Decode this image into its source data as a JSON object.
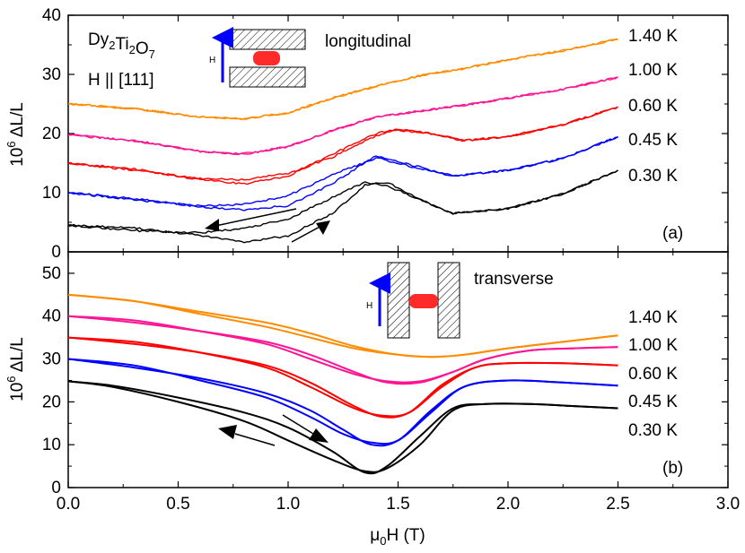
{
  "chart_data": [
    {
      "type": "line",
      "panel": "(a)",
      "xlabel": "μ0H (T)",
      "ylabel": "10^6 ΔL/L",
      "xlim": [
        0.0,
        3.0
      ],
      "ylim": [
        0,
        40
      ],
      "yticks": [
        "0",
        "10",
        "20",
        "30",
        "40"
      ],
      "legend_position": "right, beside curves",
      "annotations": [
        "Dy2Ti2O7",
        "H || [111]",
        "longitudinal",
        "(a)",
        "H"
      ],
      "series": [
        {
          "name": "0.30 K",
          "color": "#000000",
          "up": {
            "x": [
              0.0,
              0.3,
              0.6,
              0.8,
              1.0,
              1.2,
              1.35,
              1.45,
              1.6,
              1.75,
              2.0,
              2.25,
              2.5
            ],
            "y": [
              4.5,
              4.0,
              2.8,
              1.7,
              2.7,
              6.5,
              11.3,
              11.8,
              8.8,
              6.5,
              7.3,
              9.8,
              13.8
            ]
          },
          "down": {
            "x": [
              2.5,
              2.25,
              2.0,
              1.75,
              1.6,
              1.45,
              1.35,
              1.2,
              1.0,
              0.8,
              0.6,
              0.3,
              0.0
            ],
            "y": [
              13.8,
              9.8,
              7.3,
              6.5,
              8.8,
              11.2,
              11.8,
              9.2,
              5.5,
              4.0,
              3.2,
              3.6,
              4.5
            ]
          }
        },
        {
          "name": "0.45 K",
          "color": "#0000ff",
          "up": {
            "x": [
              0.0,
              0.3,
              0.6,
              0.8,
              1.0,
              1.2,
              1.4,
              1.55,
              1.75,
              2.0,
              2.25,
              2.5
            ],
            "y": [
              10.0,
              9.0,
              7.6,
              7.1,
              7.8,
              11.5,
              16.3,
              14.8,
              12.8,
              13.8,
              15.8,
              19.5
            ]
          },
          "down": {
            "x": [
              2.5,
              2.25,
              2.0,
              1.75,
              1.55,
              1.4,
              1.2,
              1.0,
              0.8,
              0.6,
              0.3,
              0.0
            ],
            "y": [
              19.5,
              15.8,
              13.8,
              12.8,
              14.5,
              15.9,
              13.0,
              9.5,
              8.0,
              7.8,
              8.8,
              10.0
            ]
          }
        },
        {
          "name": "0.60 K",
          "color": "#ff0000",
          "up": {
            "x": [
              0.0,
              0.3,
              0.6,
              0.8,
              1.0,
              1.2,
              1.4,
              1.5,
              1.65,
              1.8,
              2.0,
              2.25,
              2.5
            ],
            "y": [
              15.0,
              14.0,
              12.2,
              11.5,
              12.8,
              16.5,
              20.0,
              20.8,
              20.0,
              18.8,
              19.5,
              21.5,
              24.5
            ]
          },
          "down": {
            "x": [
              2.5,
              2.25,
              2.0,
              1.8,
              1.65,
              1.5,
              1.4,
              1.2,
              1.0,
              0.8,
              0.6,
              0.3,
              0.0
            ],
            "y": [
              24.5,
              21.5,
              19.5,
              18.8,
              20.0,
              20.6,
              19.6,
              16.0,
              13.3,
              12.2,
              12.4,
              13.8,
              15.0
            ]
          }
        },
        {
          "name": "1.00 K",
          "color": "#ff1493",
          "up": {
            "x": [
              0.0,
              0.3,
              0.6,
              0.8,
              1.0,
              1.2,
              1.4,
              1.6,
              1.8,
              2.0,
              2.25,
              2.5
            ],
            "y": [
              19.8,
              18.8,
              17.0,
              16.5,
              17.8,
              20.5,
              22.8,
              23.8,
              24.8,
              26.0,
              27.5,
              29.5
            ]
          },
          "down": {
            "x": [
              2.5,
              2.25,
              2.0,
              1.8,
              1.6,
              1.4,
              1.2,
              1.0,
              0.8,
              0.6,
              0.3,
              0.0
            ],
            "y": [
              29.5,
              27.5,
              26.0,
              24.8,
              23.8,
              22.8,
              20.5,
              17.8,
              16.6,
              17.0,
              18.8,
              19.8
            ]
          }
        },
        {
          "name": "1.40 K",
          "color": "#ff8c00",
          "up": {
            "x": [
              0.0,
              0.3,
              0.6,
              0.8,
              1.0,
              1.2,
              1.4,
              1.6,
              1.8,
              2.0,
              2.25,
              2.5
            ],
            "y": [
              25.0,
              24.2,
              22.8,
              22.5,
              23.5,
              26.0,
              28.0,
              29.8,
              31.0,
              32.5,
              34.0,
              36.0
            ]
          },
          "down": {
            "x": [
              2.5,
              2.25,
              2.0,
              1.8,
              1.6,
              1.4,
              1.2,
              1.0,
              0.8,
              0.6,
              0.3,
              0.0
            ],
            "y": [
              36.0,
              34.0,
              32.5,
              31.0,
              29.8,
              28.0,
              26.0,
              23.5,
              22.5,
              22.8,
              24.2,
              25.0
            ]
          }
        }
      ]
    },
    {
      "type": "line",
      "panel": "(b)",
      "xlabel": "μ0H (T)",
      "ylabel": "10^6 ΔL/L",
      "xlim": [
        0.0,
        3.0
      ],
      "ylim": [
        0,
        55
      ],
      "xticks": [
        "0.0",
        "0.5",
        "1.0",
        "1.5",
        "2.0",
        "2.5",
        "3.0"
      ],
      "yticks": [
        "0",
        "10",
        "20",
        "30",
        "40",
        "50"
      ],
      "legend_position": "right, beside curves",
      "annotations": [
        "transverse",
        "(b)",
        "H"
      ],
      "series": [
        {
          "name": "0.30 K",
          "color": "#000000",
          "up": {
            "x": [
              0.0,
              0.2,
              0.5,
              0.8,
              1.0,
              1.2,
              1.35,
              1.45,
              1.6,
              1.75,
              1.9,
              2.1,
              2.3,
              2.5
            ],
            "y": [
              24.8,
              23.8,
              21.0,
              17.5,
              14.0,
              8.5,
              3.5,
              5.0,
              12.0,
              18.5,
              19.5,
              19.5,
              19.0,
              18.5
            ]
          },
          "down": {
            "x": [
              2.5,
              2.3,
              2.1,
              1.9,
              1.75,
              1.6,
              1.45,
              1.35,
              1.2,
              1.0,
              0.8,
              0.5,
              0.2,
              0.0
            ],
            "y": [
              18.5,
              19.0,
              19.5,
              19.5,
              18.0,
              10.0,
              4.5,
              3.8,
              6.5,
              11.0,
              15.5,
              20.0,
              23.5,
              24.8
            ]
          }
        },
        {
          "name": "0.45 K",
          "color": "#0000ff",
          "up": {
            "x": [
              0.0,
              0.3,
              0.6,
              0.9,
              1.1,
              1.25,
              1.38,
              1.5,
              1.65,
              1.8,
              2.0,
              2.25,
              2.5
            ],
            "y": [
              30.0,
              28.0,
              25.5,
              22.0,
              18.0,
              13.5,
              10.0,
              11.0,
              18.0,
              23.5,
              25.0,
              24.5,
              23.8
            ]
          },
          "down": {
            "x": [
              2.5,
              2.25,
              2.0,
              1.8,
              1.65,
              1.5,
              1.38,
              1.25,
              1.1,
              0.9,
              0.6,
              0.3,
              0.0
            ],
            "y": [
              23.8,
              24.5,
              25.0,
              23.5,
              17.5,
              11.0,
              10.5,
              12.5,
              16.5,
              21.0,
              25.0,
              28.5,
              30.0
            ]
          }
        },
        {
          "name": "0.60 K",
          "color": "#ff0000",
          "up": {
            "x": [
              0.0,
              0.3,
              0.6,
              0.9,
              1.1,
              1.3,
              1.43,
              1.55,
              1.7,
              1.85,
              2.0,
              2.25,
              2.5
            ],
            "y": [
              35.0,
              33.5,
              31.5,
              28.5,
              24.5,
              19.0,
              16.5,
              17.5,
              24.0,
              28.0,
              29.0,
              29.0,
              28.5
            ]
          },
          "down": {
            "x": [
              2.5,
              2.25,
              2.0,
              1.85,
              1.7,
              1.55,
              1.43,
              1.3,
              1.1,
              0.9,
              0.6,
              0.3,
              0.0
            ],
            "y": [
              28.5,
              29.0,
              29.0,
              28.0,
              23.5,
              17.5,
              16.8,
              18.5,
              23.5,
              28.0,
              31.5,
              34.0,
              35.0
            ]
          }
        },
        {
          "name": "1.00 K",
          "color": "#ff1493",
          "up": {
            "x": [
              0.0,
              0.3,
              0.6,
              0.9,
              1.1,
              1.3,
              1.45,
              1.6,
              1.75,
              1.9,
              2.1,
              2.3,
              2.5
            ],
            "y": [
              40.0,
              38.5,
              36.5,
              34.0,
              31.0,
              27.0,
              24.5,
              24.5,
              27.0,
              30.0,
              32.0,
              32.5,
              32.8
            ]
          },
          "down": {
            "x": [
              2.5,
              2.3,
              2.1,
              1.9,
              1.75,
              1.6,
              1.45,
              1.3,
              1.1,
              0.9,
              0.6,
              0.3,
              0.0
            ],
            "y": [
              32.8,
              32.5,
              32.0,
              30.0,
              27.0,
              24.8,
              24.8,
              26.5,
              30.0,
              33.5,
              36.5,
              39.0,
              40.0
            ]
          }
        },
        {
          "name": "1.40 K",
          "color": "#ff8c00",
          "up": {
            "x": [
              0.0,
              0.3,
              0.6,
              0.9,
              1.1,
              1.3,
              1.5,
              1.65,
              1.8,
              2.0,
              2.25,
              2.5
            ],
            "y": [
              45.0,
              43.5,
              41.0,
              38.5,
              36.0,
              33.0,
              31.0,
              30.5,
              31.0,
              32.5,
              34.0,
              35.5
            ]
          },
          "down": {
            "x": [
              2.5,
              2.25,
              2.0,
              1.8,
              1.65,
              1.5,
              1.3,
              1.1,
              0.9,
              0.6,
              0.3,
              0.0
            ],
            "y": [
              35.5,
              34.0,
              32.5,
              31.0,
              30.5,
              31.0,
              32.5,
              35.0,
              37.5,
              40.5,
              43.5,
              45.0
            ]
          }
        }
      ]
    }
  ]
}
